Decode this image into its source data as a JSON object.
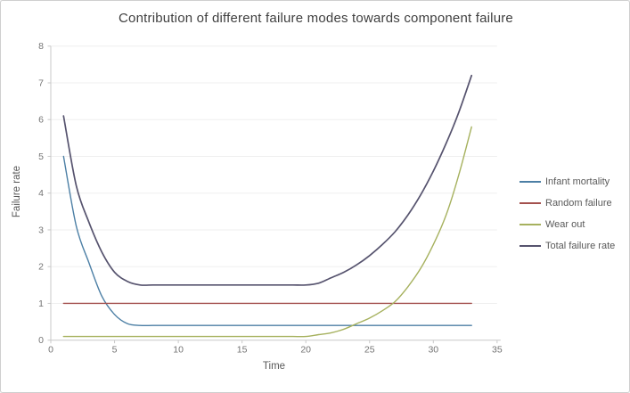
{
  "title": "Contribution of different failure modes towards component failure",
  "colors": {
    "background": "#ffffff",
    "frame_border": "#cfcfcf",
    "grid": "#efefef",
    "axis": "#c9c9c9",
    "tick_text": "#737373",
    "title_text": "#3f3f3f",
    "axis_title_text": "#595959",
    "legend_text": "#595959"
  },
  "chart_data": {
    "type": "line",
    "title": "Contribution of different failure modes towards component failure",
    "xlabel": "Time",
    "ylabel": "Failure rate",
    "xlim": [
      0,
      35
    ],
    "ylim": [
      0,
      8
    ],
    "x_ticks": [
      0,
      5,
      10,
      15,
      20,
      25,
      30,
      35
    ],
    "y_ticks": [
      0,
      1,
      2,
      3,
      4,
      5,
      6,
      7,
      8
    ],
    "grid": "horizontal-only",
    "legend_position": "right",
    "line_style": "smooth",
    "x": [
      1,
      2,
      3,
      4,
      5,
      6,
      7,
      8,
      9,
      10,
      11,
      12,
      13,
      14,
      15,
      16,
      17,
      18,
      19,
      20,
      21,
      22,
      23,
      24,
      25,
      26,
      27,
      28,
      29,
      30,
      31,
      32,
      33
    ],
    "series": [
      {
        "name": "Infant mortality",
        "color": "#4c7fa5",
        "values": [
          5.0,
          3.1,
          2.1,
          1.2,
          0.7,
          0.45,
          0.4,
          0.4,
          0.4,
          0.4,
          0.4,
          0.4,
          0.4,
          0.4,
          0.4,
          0.4,
          0.4,
          0.4,
          0.4,
          0.4,
          0.4,
          0.4,
          0.4,
          0.4,
          0.4,
          0.4,
          0.4,
          0.4,
          0.4,
          0.4,
          0.4,
          0.4,
          0.4
        ]
      },
      {
        "name": "Random failure",
        "color": "#a3514e",
        "values": [
          1.0,
          1.0,
          1.0,
          1.0,
          1.0,
          1.0,
          1.0,
          1.0,
          1.0,
          1.0,
          1.0,
          1.0,
          1.0,
          1.0,
          1.0,
          1.0,
          1.0,
          1.0,
          1.0,
          1.0,
          1.0,
          1.0,
          1.0,
          1.0,
          1.0,
          1.0,
          1.0,
          1.0,
          1.0,
          1.0,
          1.0,
          1.0,
          1.0
        ]
      },
      {
        "name": "Wear out",
        "color": "#a6b15e",
        "values": [
          0.1,
          0.1,
          0.1,
          0.1,
          0.1,
          0.1,
          0.1,
          0.1,
          0.1,
          0.1,
          0.1,
          0.1,
          0.1,
          0.1,
          0.1,
          0.1,
          0.1,
          0.1,
          0.1,
          0.1,
          0.15,
          0.2,
          0.3,
          0.45,
          0.6,
          0.8,
          1.05,
          1.45,
          1.95,
          2.6,
          3.4,
          4.5,
          5.8
        ]
      },
      {
        "name": "Total failure rate",
        "color": "#56536e",
        "values": [
          6.1,
          4.2,
          3.2,
          2.4,
          1.85,
          1.6,
          1.5,
          1.5,
          1.5,
          1.5,
          1.5,
          1.5,
          1.5,
          1.5,
          1.5,
          1.5,
          1.5,
          1.5,
          1.5,
          1.5,
          1.55,
          1.7,
          1.85,
          2.05,
          2.3,
          2.6,
          2.95,
          3.4,
          3.95,
          4.6,
          5.35,
          6.2,
          7.2
        ]
      }
    ]
  }
}
